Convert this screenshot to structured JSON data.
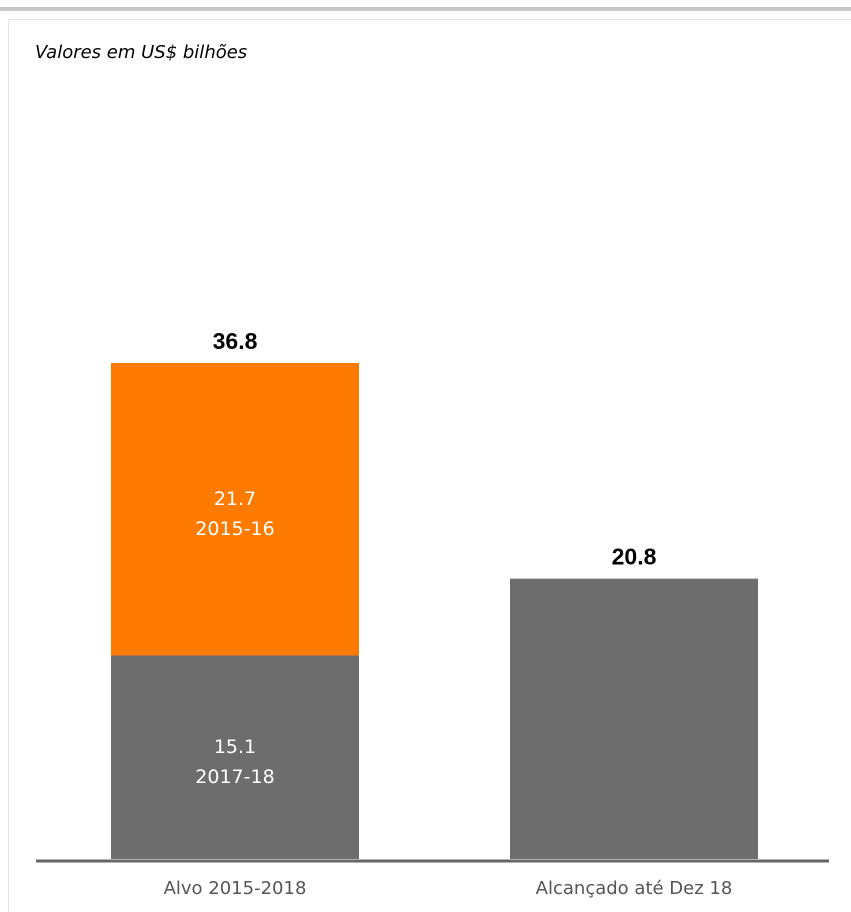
{
  "chart_data": {
    "type": "bar",
    "stacked": true,
    "subtitle": "Valores em US$ bilhões",
    "categories": [
      "Alvo 2015-2018",
      "Alcançado até Dez 18"
    ],
    "bars": [
      {
        "category": "Alvo 2015-2018",
        "total": 36.8,
        "total_label": "36.8",
        "segments": [
          {
            "value": 15.1,
            "value_label": "15.1",
            "period": "2017-18",
            "color": "#6d6d6d"
          },
          {
            "value": 21.7,
            "value_label": "21.7",
            "period": "2015-16",
            "color": "#ff7b00"
          }
        ]
      },
      {
        "category": "Alcançado até Dez 18",
        "total": 20.8,
        "total_label": "20.8",
        "segments": [
          {
            "value": 20.8,
            "value_label": "",
            "period": "",
            "color": "#6d6d6d"
          }
        ]
      }
    ],
    "ylim": [
      0,
      36.8
    ],
    "grid": false,
    "legend": "none",
    "colors": {
      "gray": "#6d6d6d",
      "orange": "#ff7b00",
      "axis": "#666666"
    }
  }
}
